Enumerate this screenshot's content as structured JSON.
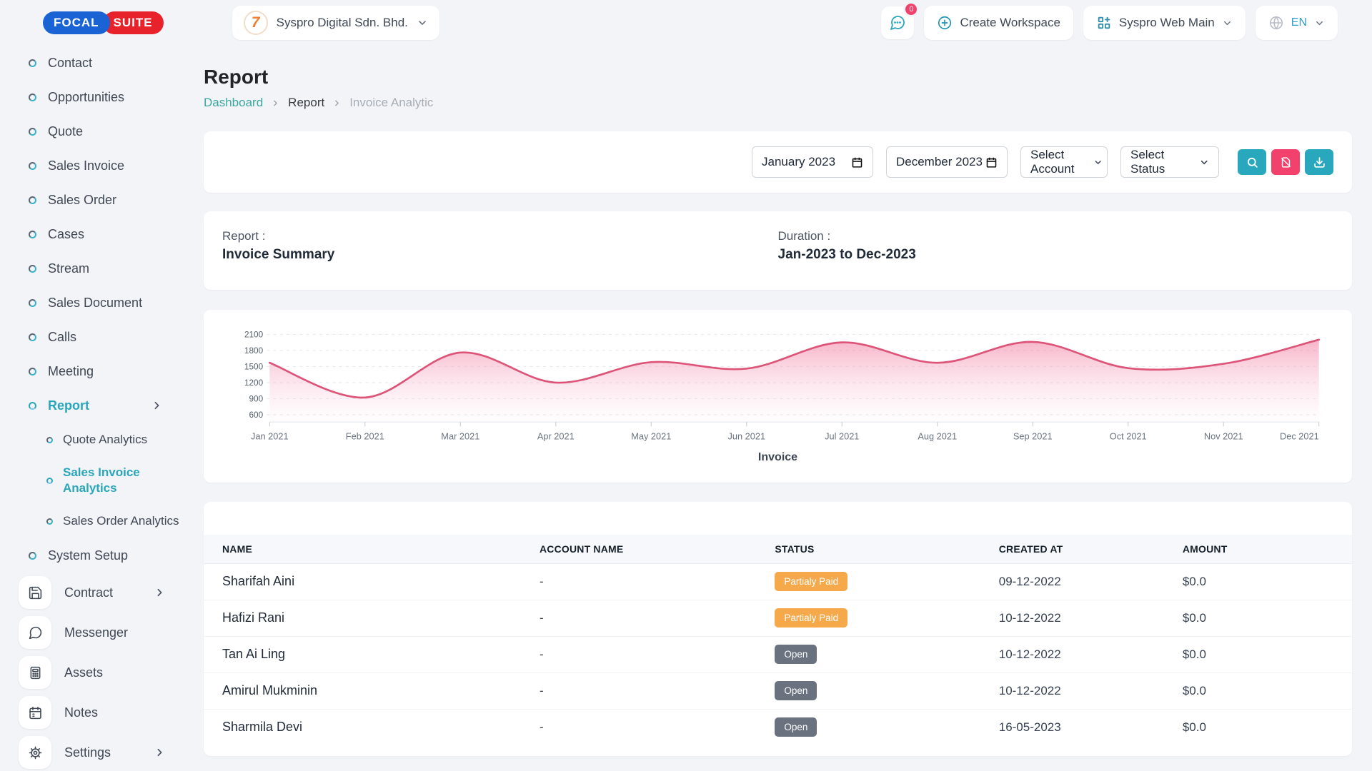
{
  "brand": {
    "logo_left": "FOCAL",
    "logo_right": "SUITE",
    "workspace_initial": "7"
  },
  "topbar": {
    "workspace_selector": "Syspro Digital Sdn. Bhd.",
    "chat_badge": "0",
    "create_workspace_label": "Create Workspace",
    "app_selector_label": "Syspro Web Main",
    "language": "EN"
  },
  "sidebar": {
    "items": [
      {
        "label": "Contact",
        "type": "top"
      },
      {
        "label": "Opportunities",
        "type": "top"
      },
      {
        "label": "Quote",
        "type": "top"
      },
      {
        "label": "Sales Invoice",
        "type": "top"
      },
      {
        "label": "Sales Order",
        "type": "top"
      },
      {
        "label": "Cases",
        "type": "top"
      },
      {
        "label": "Stream",
        "type": "top"
      },
      {
        "label": "Sales Document",
        "type": "top"
      },
      {
        "label": "Calls",
        "type": "top"
      },
      {
        "label": "Meeting",
        "type": "top"
      },
      {
        "label": "Report",
        "type": "top",
        "active": true,
        "chevron": true
      },
      {
        "label": "Quote Analytics",
        "type": "sub"
      },
      {
        "label": "Sales Invoice Analytics",
        "type": "sub",
        "active": true
      },
      {
        "label": "Sales Order Analytics",
        "type": "sub"
      },
      {
        "label": "System Setup",
        "type": "top"
      },
      {
        "label": "Contract",
        "type": "app",
        "icon": "floppy",
        "chevron": true
      },
      {
        "label": "Messenger",
        "type": "app",
        "icon": "chat"
      },
      {
        "label": "Assets",
        "type": "app",
        "icon": "calculator"
      },
      {
        "label": "Notes",
        "type": "app",
        "icon": "calendar"
      },
      {
        "label": "Settings",
        "type": "app",
        "icon": "gear",
        "chevron": true
      }
    ]
  },
  "page": {
    "title": "Report",
    "breadcrumb": {
      "home": "Dashboard",
      "section": "Report",
      "current": "Invoice Analytic"
    }
  },
  "filters": {
    "date_from": "January 2023",
    "date_to": "December 2023",
    "account_placeholder": "Select Account",
    "status_placeholder": "Select Status"
  },
  "summary": {
    "report_label": "Report :",
    "report_value": "Invoice Summary",
    "duration_label": "Duration :",
    "duration_value": "Jan-2023 to Dec-2023"
  },
  "chart_data": {
    "type": "area",
    "title": "Invoice",
    "legend": "Invoice",
    "x": [
      "Jan 2021",
      "Feb 2021",
      "Mar 2021",
      "Apr 2021",
      "May 2021",
      "Jun 2021",
      "Jul 2021",
      "Aug 2021",
      "Sep 2021",
      "Oct 2021",
      "Nov 2021",
      "Dec 2021"
    ],
    "series": [
      {
        "name": "Invoice",
        "values": [
          1570,
          920,
          1760,
          1200,
          1580,
          1460,
          1950,
          1570,
          1960,
          1470,
          1550,
          2000
        ]
      }
    ],
    "yticks": [
      600,
      900,
      1200,
      1500,
      1800,
      2100
    ],
    "ylim": [
      600,
      2100
    ],
    "grid": "dashed-horizontal",
    "legend_position": "bottom"
  },
  "table": {
    "columns": [
      "NAME",
      "ACCOUNT NAME",
      "STATUS",
      "CREATED AT",
      "AMOUNT"
    ],
    "rows": [
      {
        "name": "Sharifah Aini",
        "account": "-",
        "status": "Partialy Paid",
        "status_type": "warning",
        "created": "09-12-2022",
        "amount": "$0.0"
      },
      {
        "name": "Hafizi Rani",
        "account": "-",
        "status": "Partialy Paid",
        "status_type": "warning",
        "created": "10-12-2022",
        "amount": "$0.0"
      },
      {
        "name": "Tan Ai Ling",
        "account": "-",
        "status": "Open",
        "status_type": "dark",
        "created": "10-12-2022",
        "amount": "$0.0"
      },
      {
        "name": "Amirul Mukminin",
        "account": "-",
        "status": "Open",
        "status_type": "dark",
        "created": "10-12-2022",
        "amount": "$0.0"
      },
      {
        "name": "Sharmila Devi",
        "account": "-",
        "status": "Open",
        "status_type": "dark",
        "created": "16-05-2023",
        "amount": "$0.0"
      }
    ]
  },
  "colors": {
    "accent_teal": "#28a7bd",
    "pink": "#f1416c",
    "link": "#3aa79f",
    "sidebar_active": "#2aa6ba",
    "badge_warning": "#f6a94a",
    "badge_open": "#6a7280",
    "chart_line": "#dd5479",
    "chart_fill_top": "#f06a93",
    "logo_blue": "#1a63d4",
    "logo_red": "#e8222a",
    "workspace_orange": "#ed7d31"
  }
}
